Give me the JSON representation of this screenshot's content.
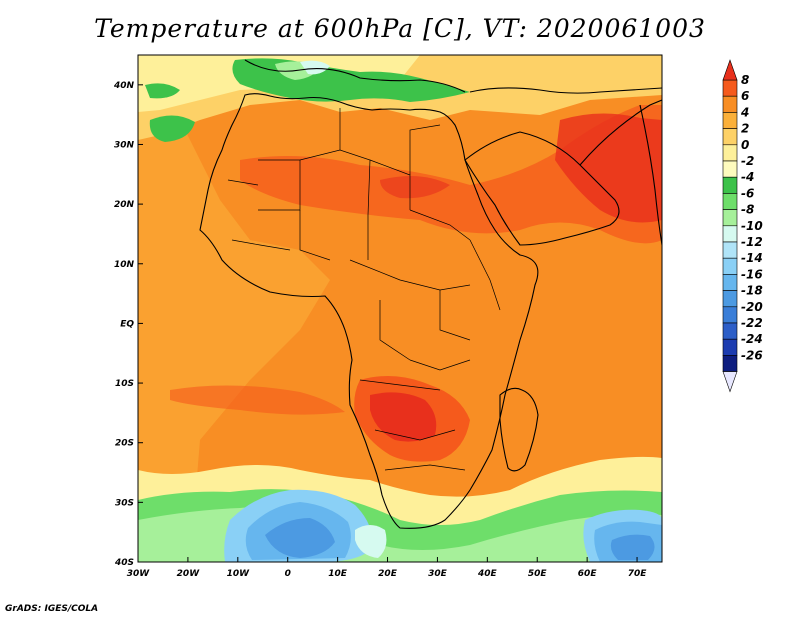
{
  "title": "Temperature at 600hPa [C], VT: 2020061003",
  "credit": "GrADS: IGES/COLA",
  "map": {
    "lon_range": [
      -30,
      75
    ],
    "lat_range": [
      -40,
      45
    ],
    "lat_ticks": [
      {
        "value": 40,
        "label": "40N"
      },
      {
        "value": 30,
        "label": "30N"
      },
      {
        "value": 20,
        "label": "20N"
      },
      {
        "value": 10,
        "label": "10N"
      },
      {
        "value": 0,
        "label": "EQ"
      },
      {
        "value": -10,
        "label": "10S"
      },
      {
        "value": -20,
        "label": "20S"
      },
      {
        "value": -30,
        "label": "30S"
      },
      {
        "value": -40,
        "label": "40S"
      }
    ],
    "lon_ticks": [
      {
        "value": -30,
        "label": "30W"
      },
      {
        "value": -20,
        "label": "20W"
      },
      {
        "value": -10,
        "label": "10W"
      },
      {
        "value": 0,
        "label": "0"
      },
      {
        "value": 10,
        "label": "10E"
      },
      {
        "value": 20,
        "label": "20E"
      },
      {
        "value": 30,
        "label": "30E"
      },
      {
        "value": 40,
        "label": "40E"
      },
      {
        "value": 50,
        "label": "50E"
      },
      {
        "value": 60,
        "label": "60E"
      },
      {
        "value": 70,
        "label": "70E"
      }
    ]
  },
  "colorbar": {
    "labels": [
      "8",
      "6",
      "4",
      "2",
      "0",
      "-2",
      "-4",
      "-6",
      "-8",
      "-10",
      "-12",
      "-14",
      "-16",
      "-18",
      "-20",
      "-22",
      "-24",
      "-26"
    ],
    "colors": [
      "#e8301c",
      "#f55a1c",
      "#f88e24",
      "#fbb03a",
      "#fdd167",
      "#fef09a",
      "#fefbbe",
      "#3dc24a",
      "#6ede6a",
      "#a6f09a",
      "#d6faf0",
      "#b0e4f8",
      "#8ad0f6",
      "#66b6ee",
      "#4c9ae2",
      "#3a7ed8",
      "#2c5ec8",
      "#1c3cb0",
      "#0e1e80",
      "#e8e8ff"
    ]
  }
}
